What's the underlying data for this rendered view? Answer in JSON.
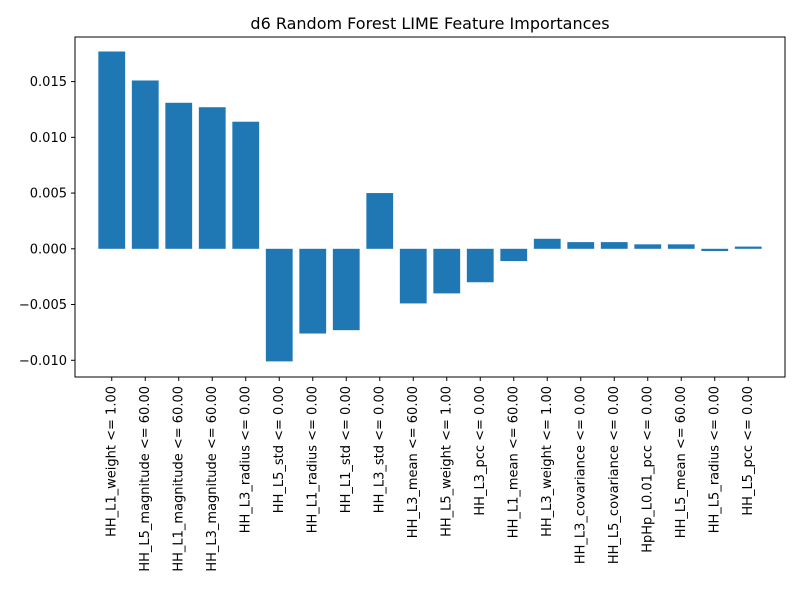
{
  "chart_data": {
    "type": "bar",
    "title": "d6 Random Forest LIME Feature Importances",
    "xlabel": "",
    "ylabel": "",
    "ylim": [
      -0.0115,
      0.019
    ],
    "yticks": [
      -0.01,
      -0.005,
      0.0,
      0.005,
      0.01,
      0.015
    ],
    "ytick_labels": [
      "−0.010",
      "−0.005",
      "0.000",
      "0.005",
      "0.010",
      "0.015"
    ],
    "grid": false,
    "bar_color": "#1f77b4",
    "categories": [
      "HH_L1_weight <= 1.00",
      "HH_L5_magnitude <= 60.00",
      "HH_L1_magnitude <= 60.00",
      "HH_L3_magnitude <= 60.00",
      "HH_L3_radius <= 0.00",
      "HH_L5_std <= 0.00",
      "HH_L1_radius <= 0.00",
      "HH_L1_std <= 0.00",
      "HH_L3_std <= 0.00",
      "HH_L3_mean <= 60.00",
      "HH_L5_weight <= 1.00",
      "HH_L3_pcc <= 0.00",
      "HH_L1_mean <= 60.00",
      "HH_L3_weight <= 1.00",
      "HH_L3_covariance <= 0.00",
      "HH_L5_covariance <= 0.00",
      "HpHp_L0.01_pcc <= 0.00",
      "HH_L5_mean <= 60.00",
      "HH_L5_radius <= 0.00",
      "HH_L5_pcc <= 0.00"
    ],
    "values": [
      0.0177,
      0.0151,
      0.0131,
      0.0127,
      0.0114,
      -0.0101,
      -0.0076,
      -0.0073,
      0.005,
      -0.0049,
      -0.004,
      -0.003,
      -0.0011,
      0.0009,
      0.0006,
      0.0006,
      0.0004,
      0.0004,
      -0.0002,
      0.0002
    ]
  }
}
